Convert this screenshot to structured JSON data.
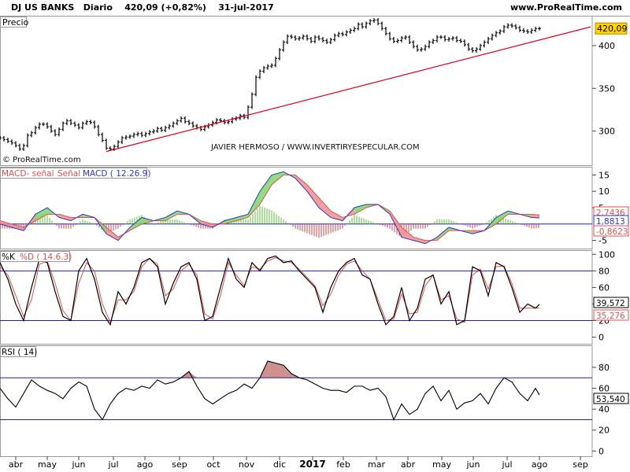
{
  "header": {
    "symbol": "DJ US BANKS",
    "period": "Diario",
    "price": "420,09 (+0,82%)",
    "date": "31-jul-2017",
    "brand": "www.ProRealTime.com"
  },
  "watermark": "JAVIER HERMOSO / WWW.INVERTIRYESPECULAR.COM",
  "copyright": "© ProRealTime.com",
  "colors": {
    "trend": "#e0001a",
    "macd_line": "#3333cc",
    "signal_line": "#e05050",
    "hist_pos": "#5cc23f",
    "hist_neg": "#c84a4a",
    "fill_up": "#7ed66a",
    "fill_dn": "#ee8f8f",
    "ref_line": "#2020a0",
    "rsi_fill": "#d09090"
  },
  "chart_data": [
    {
      "type": "line",
      "panel": "price",
      "title": "Precio",
      "y_ticks": [
        300,
        350,
        400
      ],
      "ylim": [
        260,
        435
      ],
      "x_months": [
        "abr",
        "may",
        "jun",
        "jul",
        "ago",
        "sep",
        "oct",
        "nov",
        "dic",
        "2017",
        "feb",
        "mar",
        "abr",
        "may",
        "jun",
        "jul",
        "ago",
        "sep"
      ],
      "last_value_label": "420,09",
      "x": [
        0,
        5,
        10,
        15,
        20,
        25,
        30,
        35,
        40,
        45,
        50,
        55,
        60,
        65,
        70,
        75,
        80,
        85,
        90,
        95,
        100,
        105,
        110,
        115,
        120,
        125,
        130,
        135,
        140,
        145,
        150,
        155,
        160,
        165,
        170,
        175,
        180,
        185,
        190,
        195,
        200,
        205,
        210,
        215,
        220,
        225,
        230,
        235,
        240,
        245,
        250,
        255,
        260,
        265,
        270,
        275,
        280,
        285,
        290,
        295,
        300,
        305,
        310,
        315,
        320,
        325,
        330,
        335,
        340,
        345,
        350,
        355,
        360,
        365,
        370,
        375,
        380,
        385,
        390,
        395,
        400,
        405,
        410,
        415,
        420,
        425,
        430,
        435,
        440,
        445,
        450,
        455,
        460,
        465,
        470,
        475,
        480,
        485,
        490,
        495,
        500,
        505,
        510,
        515,
        520,
        525,
        530,
        535,
        540,
        545,
        550,
        555,
        560,
        565,
        570,
        575,
        580,
        585,
        590,
        595,
        600,
        605,
        610,
        615,
        620,
        625,
        630,
        635,
        640,
        645,
        650,
        655,
        660,
        665,
        670,
        675,
        680,
        685
      ],
      "close": [
        292,
        290,
        288,
        286,
        283,
        279,
        283,
        295,
        298,
        304,
        308,
        308,
        305,
        300,
        296,
        302,
        309,
        312,
        309,
        307,
        304,
        309,
        311,
        310,
        305,
        296,
        289,
        280,
        279,
        282,
        287,
        292,
        293,
        294,
        296,
        297,
        295,
        297,
        299,
        300,
        303,
        301,
        304,
        306,
        309,
        312,
        315,
        311,
        309,
        306,
        304,
        302,
        305,
        307,
        310,
        313,
        312,
        310,
        311,
        314,
        315,
        318,
        316,
        328,
        343,
        363,
        370,
        374,
        376,
        377,
        385,
        395,
        404,
        411,
        410,
        408,
        409,
        411,
        408,
        405,
        410,
        408,
        406,
        404,
        407,
        412,
        414,
        413,
        416,
        418,
        420,
        425,
        422,
        426,
        429,
        430,
        426,
        420,
        414,
        408,
        405,
        406,
        409,
        410,
        404,
        399,
        395,
        396,
        399,
        404,
        406,
        410,
        410,
        407,
        408,
        409,
        406,
        405,
        401,
        396,
        394,
        396,
        400,
        404,
        408,
        412,
        415,
        417,
        422,
        424,
        423,
        421,
        418,
        417,
        416,
        418,
        420,
        420
      ],
      "trendline": {
        "x": [
          135,
          750
        ],
        "y": [
          276,
          422
        ]
      }
    },
    {
      "type": "line",
      "panel": "macd",
      "title": "MACD- señal / Señal / MACD ( 12.26.9)",
      "legend": [
        "MACD- señal",
        "Señal",
        "MACD ( 12.26.9)"
      ],
      "y_ticks": [
        -5,
        5,
        10,
        15
      ],
      "ylim": [
        -7.5,
        17.5
      ],
      "labels": [
        "2,7436",
        "1,8813",
        "-0,8623"
      ],
      "x": [
        0,
        15,
        30,
        45,
        60,
        75,
        90,
        105,
        120,
        135,
        150,
        165,
        180,
        195,
        210,
        225,
        240,
        255,
        270,
        285,
        300,
        315,
        330,
        345,
        360,
        375,
        390,
        405,
        420,
        435,
        450,
        465,
        480,
        495,
        510,
        525,
        540,
        555,
        570,
        585,
        600,
        615,
        630,
        645,
        660,
        675,
        685
      ],
      "macd": [
        0,
        -1,
        -2,
        3,
        5,
        2,
        1,
        3,
        2,
        -3,
        -5,
        -1,
        2,
        1,
        2,
        4,
        3,
        0,
        -1,
        1,
        2,
        3,
        10,
        15,
        16,
        14,
        10,
        5,
        2,
        1,
        5,
        6,
        6,
        3,
        -4,
        -5,
        -6,
        -4,
        -1,
        -2,
        -3,
        -2,
        2,
        4,
        3,
        2,
        1.8813
      ],
      "signal": [
        1,
        0,
        -1,
        1,
        3,
        3,
        2,
        2,
        2,
        -1,
        -4,
        -2,
        0,
        1,
        1,
        3,
        3,
        1,
        0,
        0,
        1,
        2,
        6,
        12,
        15,
        15,
        12,
        8,
        4,
        2,
        3,
        5,
        6,
        4,
        -1,
        -4,
        -5,
        -5,
        -2,
        -2,
        -2,
        -2,
        0,
        3,
        3,
        3,
        2.7436
      ]
    },
    {
      "type": "line",
      "panel": "stochastic",
      "title": "%K / %D ( 14.6.3)",
      "legend": [
        "%K",
        "%D ( 14.6.3)"
      ],
      "y_ticks": [
        0,
        20,
        40,
        60,
        80,
        100
      ],
      "ylim": [
        -8,
        105
      ],
      "ref_levels": [
        20,
        80
      ],
      "labels": [
        "39,572",
        "35,276"
      ],
      "x": [
        0,
        10,
        20,
        30,
        40,
        50,
        60,
        70,
        80,
        90,
        100,
        110,
        120,
        130,
        140,
        150,
        160,
        170,
        180,
        190,
        200,
        210,
        220,
        230,
        240,
        250,
        260,
        270,
        280,
        290,
        300,
        310,
        320,
        330,
        340,
        350,
        360,
        370,
        380,
        390,
        400,
        410,
        420,
        430,
        440,
        450,
        460,
        470,
        480,
        490,
        500,
        510,
        520,
        530,
        540,
        550,
        560,
        570,
        580,
        590,
        600,
        610,
        620,
        630,
        640,
        650,
        660,
        670,
        680,
        685
      ],
      "k": [
        90,
        70,
        40,
        20,
        60,
        94,
        90,
        55,
        25,
        20,
        80,
        95,
        70,
        30,
        15,
        55,
        40,
        60,
        90,
        95,
        85,
        40,
        65,
        85,
        90,
        70,
        20,
        25,
        60,
        95,
        70,
        60,
        90,
        80,
        95,
        98,
        90,
        92,
        80,
        70,
        60,
        30,
        60,
        80,
        90,
        95,
        75,
        70,
        40,
        15,
        25,
        60,
        20,
        35,
        70,
        75,
        40,
        55,
        15,
        20,
        85,
        80,
        50,
        90,
        85,
        60,
        30,
        40,
        35,
        39.572
      ],
      "d": [
        85,
        75,
        50,
        25,
        45,
        88,
        92,
        65,
        32,
        20,
        65,
        90,
        80,
        40,
        18,
        45,
        45,
        55,
        85,
        95,
        88,
        50,
        58,
        80,
        88,
        75,
        28,
        22,
        50,
        90,
        75,
        62,
        85,
        82,
        92,
        96,
        92,
        90,
        82,
        72,
        62,
        38,
        52,
        75,
        88,
        92,
        80,
        70,
        45,
        20,
        22,
        52,
        28,
        30,
        62,
        75,
        45,
        50,
        22,
        18,
        75,
        82,
        58,
        85,
        86,
        65,
        35,
        35,
        35,
        35.276
      ]
    },
    {
      "type": "line",
      "panel": "rsi",
      "title": "RSI ( 14)",
      "y_ticks": [
        0,
        20,
        40,
        60,
        80
      ],
      "ylim": [
        -5,
        101
      ],
      "ref_levels": [
        30,
        70
      ],
      "labels": [
        "53,540"
      ],
      "x": [
        0,
        10,
        20,
        30,
        40,
        50,
        60,
        70,
        80,
        90,
        100,
        110,
        120,
        130,
        140,
        150,
        160,
        170,
        180,
        190,
        200,
        210,
        220,
        230,
        240,
        250,
        260,
        270,
        280,
        290,
        300,
        310,
        320,
        330,
        340,
        350,
        360,
        370,
        380,
        390,
        400,
        410,
        420,
        430,
        440,
        450,
        460,
        470,
        480,
        490,
        500,
        510,
        520,
        530,
        540,
        550,
        560,
        570,
        580,
        590,
        600,
        610,
        620,
        630,
        640,
        650,
        660,
        670,
        680,
        685
      ],
      "values": [
        60,
        50,
        42,
        55,
        68,
        62,
        58,
        55,
        50,
        60,
        66,
        62,
        40,
        30,
        45,
        55,
        60,
        58,
        62,
        60,
        68,
        64,
        66,
        70,
        76,
        62,
        50,
        45,
        50,
        55,
        58,
        64,
        60,
        70,
        86,
        84,
        82,
        74,
        70,
        68,
        64,
        60,
        58,
        58,
        56,
        62,
        62,
        58,
        60,
        52,
        30,
        45,
        35,
        40,
        55,
        62,
        48,
        58,
        40,
        46,
        48,
        55,
        45,
        60,
        70,
        66,
        55,
        48,
        60,
        53.54
      ]
    }
  ]
}
